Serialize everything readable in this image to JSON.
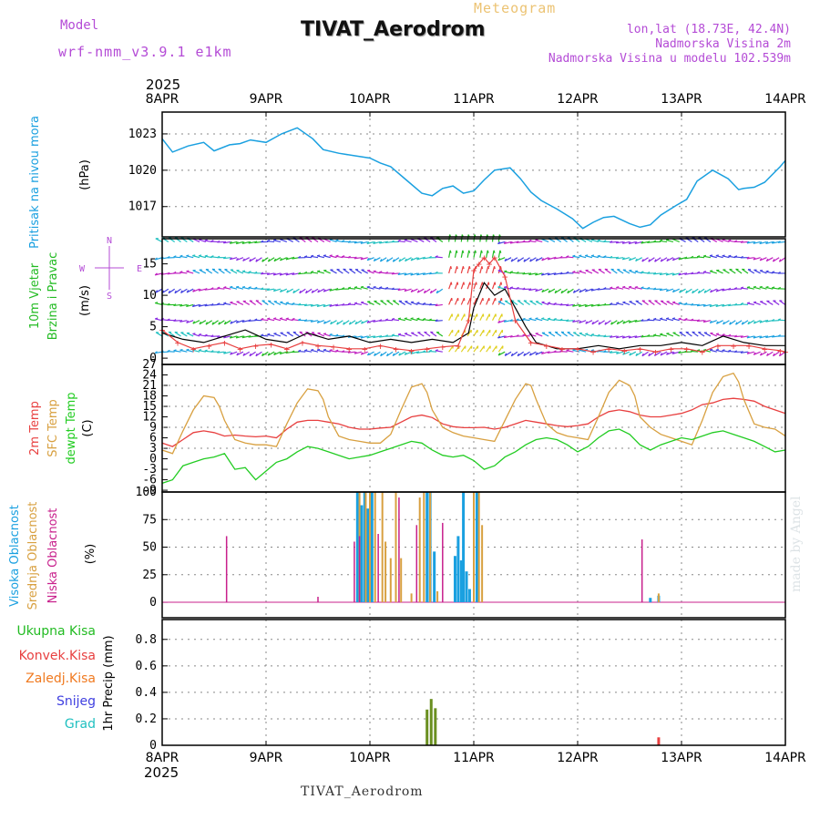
{
  "header": {
    "model_label": "Model",
    "model_value": "wrf-nmm_v3.9.1  e1km",
    "meteogram_label": "Meteogram",
    "station": "TIVAT_Aerodrom",
    "lonlat": "lon,lat (18.73E, 42.4N)",
    "elevation": "Nadmorska Visina 2m",
    "model_elevation": "Nadmorska Visina u modelu 102.539m"
  },
  "footer": {
    "station": "TIVAT_Aerodrom",
    "watermark": "made by Angel"
  },
  "colors": {
    "pressure": "#1aa0e0",
    "wind_label": "#22bb22",
    "purple": "#b44bd6",
    "temp2m": "#e84040",
    "sfc": "#d8a040",
    "dew": "#22cc22",
    "cloud_high": "#1aa0e0",
    "cloud_mid": "#d8a040",
    "cloud_low": "#c8208c",
    "precip_total": "#22bb22",
    "precip_conv": "#e84040",
    "precip_frozen": "#f07a20",
    "precip_snow": "#4040e0",
    "precip_hail": "#20c0c0",
    "gust": "#000000"
  },
  "chart_data": [
    {
      "type": "line",
      "panel": "pressure",
      "ylabel": [
        "Pritisak na nivou mora",
        "(hPa)"
      ],
      "y_ticks": [
        1017,
        1020,
        1023
      ],
      "ylim": [
        1014.5,
        1024.8
      ],
      "x_start_label": "2025",
      "x_ticks": [
        "8APR",
        "9APR",
        "10APR",
        "11APR",
        "12APR",
        "13APR",
        "14APR"
      ],
      "grid": true,
      "series": [
        {
          "x_days": [
            0,
            0.1,
            0.25,
            0.4,
            0.5,
            0.65,
            0.75,
            0.85,
            1.0,
            1.15,
            1.3,
            1.45,
            1.55,
            1.7,
            1.85,
            2.0,
            2.1,
            2.2,
            2.35,
            2.5,
            2.6,
            2.7,
            2.8,
            2.9,
            3.0,
            3.1,
            3.2,
            3.35,
            3.45,
            3.55,
            3.65,
            3.8,
            3.95,
            4.05,
            4.15,
            4.25,
            4.35,
            4.5,
            4.6,
            4.7,
            4.8,
            4.95,
            5.05,
            5.15,
            5.3,
            5.45,
            5.55,
            5.6,
            5.7,
            5.8,
            5.95,
            6.0
          ],
          "values": [
            1022.6,
            1021.5,
            1022.0,
            1022.3,
            1021.6,
            1022.1,
            1022.2,
            1022.5,
            1022.3,
            1023.0,
            1023.5,
            1022.6,
            1021.7,
            1021.4,
            1021.2,
            1021.0,
            1020.6,
            1020.3,
            1019.2,
            1018.1,
            1017.9,
            1018.5,
            1018.7,
            1018.1,
            1018.3,
            1019.2,
            1020.0,
            1020.2,
            1019.3,
            1018.2,
            1017.5,
            1016.8,
            1016.0,
            1015.2,
            1015.7,
            1016.1,
            1016.2,
            1015.6,
            1015.3,
            1015.5,
            1016.3,
            1017.1,
            1017.6,
            1019.1,
            1020.0,
            1019.3,
            1018.4,
            1018.5,
            1018.6,
            1019.0,
            1020.3,
            1020.8
          ]
        }
      ]
    },
    {
      "type": "scatter",
      "panel": "wind",
      "ylabel": [
        "10m Vjetar",
        "Brzina i Pravac",
        "(m/s)"
      ],
      "compass": [
        "N",
        "W",
        "E",
        "S"
      ],
      "y_ticks": [
        0,
        5,
        10,
        15
      ],
      "ylim": [
        -1,
        19
      ],
      "series": [
        {
          "name": "brzina",
          "x_days": [
            0,
            0.15,
            0.3,
            0.45,
            0.6,
            0.75,
            0.9,
            1.05,
            1.2,
            1.35,
            1.5,
            1.65,
            1.8,
            1.95,
            2.1,
            2.25,
            2.4,
            2.55,
            2.7,
            2.85,
            2.95,
            3.0,
            3.05,
            3.1,
            3.15,
            3.2,
            3.3,
            3.4,
            3.55,
            3.7,
            3.85,
            4.0,
            4.15,
            4.3,
            4.45,
            4.6,
            4.75,
            4.9,
            5.05,
            5.2,
            5.35,
            5.5,
            5.65,
            5.8,
            5.95,
            6.0
          ],
          "values": [
            4.5,
            2.5,
            1.5,
            2.0,
            2.5,
            1.5,
            2.0,
            2.2,
            1.5,
            2.5,
            2.0,
            1.8,
            1.5,
            1.5,
            2.0,
            1.5,
            1.2,
            1.5,
            1.8,
            2.0,
            6.0,
            14.0,
            15.0,
            16.0,
            15.0,
            16.0,
            13.0,
            6.0,
            2.5,
            2.0,
            1.5,
            1.5,
            1.0,
            1.5,
            1.2,
            1.5,
            1.0,
            1.5,
            1.5,
            1.0,
            2.0,
            2.0,
            2.0,
            1.5,
            1.2,
            1.0
          ]
        },
        {
          "name": "udari",
          "x_days": [
            0,
            0.2,
            0.4,
            0.6,
            0.8,
            1.0,
            1.2,
            1.4,
            1.6,
            1.8,
            2.0,
            2.2,
            2.4,
            2.6,
            2.8,
            2.95,
            3.0,
            3.1,
            3.2,
            3.3,
            3.4,
            3.5,
            3.6,
            3.8,
            4.0,
            4.2,
            4.4,
            4.6,
            4.8,
            5.0,
            5.2,
            5.4,
            5.6,
            5.8,
            6.0
          ],
          "values": [
            4.0,
            3.0,
            2.5,
            3.5,
            4.5,
            3.0,
            2.5,
            4.0,
            3.0,
            3.5,
            2.5,
            3.0,
            2.5,
            3.0,
            2.5,
            4.0,
            8.0,
            12.0,
            10.0,
            11.0,
            8.0,
            5.0,
            2.5,
            1.5,
            1.5,
            2.0,
            1.5,
            2.0,
            2.0,
            2.5,
            2.0,
            3.5,
            2.5,
            2.0,
            2.0
          ]
        }
      ]
    },
    {
      "type": "line",
      "panel": "temperature",
      "ylabel": [
        "2m Temp",
        "SFC Temp",
        "dewpt Temp",
        "(C)"
      ],
      "y_ticks": [
        -9,
        -6,
        -3,
        0,
        3,
        6,
        9,
        12,
        15,
        18,
        21,
        24,
        27
      ],
      "ylim": [
        -9.5,
        27
      ],
      "series": [
        {
          "name": "2m Temp",
          "x_days": [
            0,
            0.1,
            0.2,
            0.3,
            0.4,
            0.5,
            0.6,
            0.7,
            0.8,
            0.9,
            1.0,
            1.1,
            1.2,
            1.3,
            1.4,
            1.5,
            1.6,
            1.7,
            1.8,
            1.9,
            2.0,
            2.1,
            2.2,
            2.3,
            2.4,
            2.5,
            2.6,
            2.7,
            2.8,
            2.9,
            3.0,
            3.1,
            3.2,
            3.3,
            3.4,
            3.5,
            3.6,
            3.7,
            3.8,
            3.9,
            4.0,
            4.1,
            4.2,
            4.3,
            4.4,
            4.5,
            4.6,
            4.7,
            4.8,
            4.9,
            5.0,
            5.1,
            5.2,
            5.3,
            5.4,
            5.5,
            5.6,
            5.7,
            5.8,
            5.9,
            6.0
          ],
          "values": [
            4.5,
            3.5,
            5.5,
            7.5,
            8.0,
            7.5,
            6.5,
            6.8,
            6.5,
            6.3,
            6.5,
            6.0,
            8.5,
            10.5,
            11.0,
            11.0,
            10.5,
            10.0,
            9.0,
            8.5,
            8.5,
            8.8,
            9.0,
            10.5,
            12.0,
            12.5,
            11.8,
            10.0,
            9.2,
            8.9,
            8.9,
            9.0,
            8.5,
            9.0,
            10.0,
            11.0,
            10.5,
            10.0,
            9.5,
            9.2,
            9.5,
            10.0,
            12.0,
            13.5,
            14.0,
            13.5,
            12.5,
            12.0,
            12.0,
            12.5,
            13.0,
            14.0,
            15.5,
            16.0,
            17.0,
            17.3,
            17.0,
            16.5,
            15.0,
            14.0,
            13.0
          ]
        },
        {
          "name": "SFC Temp",
          "x_days": [
            0,
            0.1,
            0.2,
            0.3,
            0.4,
            0.5,
            0.55,
            0.6,
            0.7,
            0.8,
            0.9,
            1.0,
            1.1,
            1.2,
            1.3,
            1.4,
            1.5,
            1.55,
            1.6,
            1.7,
            1.8,
            1.9,
            2.0,
            2.1,
            2.2,
            2.3,
            2.4,
            2.5,
            2.55,
            2.6,
            2.7,
            2.8,
            2.9,
            3.0,
            3.1,
            3.2,
            3.3,
            3.4,
            3.5,
            3.55,
            3.6,
            3.7,
            3.8,
            3.9,
            4.0,
            4.1,
            4.2,
            4.3,
            4.4,
            4.5,
            4.55,
            4.6,
            4.7,
            4.8,
            4.9,
            5.0,
            5.1,
            5.2,
            5.3,
            5.4,
            5.5,
            5.55,
            5.6,
            5.7,
            5.8,
            5.9,
            6.0
          ],
          "values": [
            2.5,
            1.5,
            8.0,
            14.0,
            18.0,
            17.5,
            15.0,
            11.0,
            5.5,
            4.5,
            4.0,
            4.0,
            3.5,
            10.0,
            16.0,
            20.0,
            19.5,
            17.0,
            12.0,
            6.5,
            5.5,
            5.0,
            4.5,
            4.5,
            7.0,
            14.0,
            20.5,
            21.5,
            19.0,
            14.0,
            9.0,
            7.5,
            6.5,
            6.0,
            5.5,
            5.0,
            11.0,
            17.0,
            21.5,
            21.0,
            17.0,
            10.0,
            7.5,
            6.5,
            6.0,
            5.5,
            12.0,
            19.0,
            22.5,
            21.0,
            18.0,
            12.0,
            9.0,
            7.0,
            6.0,
            5.0,
            4.0,
            11.0,
            19.0,
            23.5,
            24.5,
            22.0,
            17.0,
            10.0,
            9.0,
            8.5,
            6.5
          ]
        },
        {
          "name": "dewpt Temp",
          "x_days": [
            0,
            0.1,
            0.2,
            0.3,
            0.4,
            0.5,
            0.6,
            0.7,
            0.8,
            0.9,
            1.0,
            1.1,
            1.2,
            1.3,
            1.4,
            1.5,
            1.6,
            1.7,
            1.8,
            1.9,
            2.0,
            2.1,
            2.2,
            2.3,
            2.4,
            2.5,
            2.6,
            2.7,
            2.8,
            2.9,
            3.0,
            3.1,
            3.2,
            3.3,
            3.4,
            3.5,
            3.6,
            3.7,
            3.8,
            3.9,
            4.0,
            4.1,
            4.2,
            4.3,
            4.4,
            4.5,
            4.6,
            4.7,
            4.8,
            4.9,
            5.0,
            5.1,
            5.2,
            5.3,
            5.4,
            5.5,
            5.6,
            5.7,
            5.8,
            5.9,
            6.0
          ],
          "values": [
            -7.0,
            -6.0,
            -2.0,
            -1.0,
            0.0,
            0.5,
            1.5,
            -3.0,
            -2.5,
            -6.0,
            -3.5,
            -1.0,
            0.0,
            2.0,
            3.5,
            3.0,
            2.0,
            1.0,
            0.0,
            0.5,
            1.0,
            2.0,
            3.0,
            4.0,
            5.0,
            4.5,
            2.5,
            1.0,
            0.5,
            1.0,
            -0.5,
            -3.0,
            -2.0,
            0.5,
            2.0,
            4.0,
            5.5,
            6.0,
            5.5,
            4.0,
            2.0,
            3.5,
            6.0,
            8.0,
            8.5,
            7.0,
            4.0,
            2.5,
            4.0,
            5.0,
            6.0,
            5.5,
            6.5,
            7.5,
            8.0,
            7.0,
            6.0,
            5.0,
            3.5,
            2.0,
            2.5
          ]
        }
      ]
    },
    {
      "type": "bar",
      "panel": "cloud",
      "ylabel": [
        "Visoka Oblacnost",
        "Srednja Oblacnost",
        "Niska Oblacnost",
        "(%)"
      ],
      "y_ticks": [
        0,
        25,
        50,
        75,
        100
      ],
      "ylim": [
        0,
        100
      ],
      "series": [
        {
          "name": "Visoka Oblacnost",
          "x_days": [
            1.88,
            1.92,
            1.95,
            1.98,
            2.02,
            2.55,
            2.58,
            2.62,
            2.82,
            2.85,
            2.88,
            2.9,
            2.93,
            2.96,
            3.03,
            4.7,
            4.78
          ],
          "values": [
            100,
            88,
            100,
            85,
            100,
            100,
            100,
            46,
            42,
            60,
            38,
            100,
            28,
            12,
            100,
            4,
            6
          ]
        },
        {
          "name": "Srednja Oblacnost",
          "x_days": [
            1.9,
            1.96,
            2.0,
            2.05,
            2.12,
            2.15,
            2.2,
            2.25,
            2.3,
            2.4,
            2.48,
            2.52,
            2.58,
            2.65,
            3.0,
            3.05,
            3.08,
            4.78
          ],
          "values": [
            100,
            100,
            100,
            100,
            100,
            55,
            40,
            100,
            40,
            8,
            95,
            100,
            100,
            10,
            100,
            100,
            70,
            8
          ]
        },
        {
          "name": "Niska Oblacnost",
          "x_days": [
            0.62,
            1.5,
            1.85,
            1.9,
            2.08,
            2.28,
            2.45,
            2.7,
            4.62
          ],
          "values": [
            60,
            5,
            55,
            60,
            62,
            95,
            70,
            72,
            57
          ]
        }
      ]
    },
    {
      "type": "bar",
      "panel": "precip",
      "ylabel": [
        "1hr Precip (mm)"
      ],
      "legend": [
        "Ukupna Kisa",
        "Konvek.Kisa",
        "Zaledj.Kisa",
        "Snijeg",
        "Grad"
      ],
      "y_ticks": [
        0,
        0.2,
        0.4,
        0.6,
        0.8
      ],
      "ylim": [
        0,
        0.95
      ],
      "x_ticks": [
        "8APR",
        "9APR",
        "10APR",
        "11APR",
        "12APR",
        "13APR",
        "14APR"
      ],
      "x_end_label": "2025",
      "series": [
        {
          "name": "Ukupna Kisa",
          "x_days": [
            2.55,
            2.59,
            2.63
          ],
          "values": [
            0.27,
            0.35,
            0.28
          ]
        },
        {
          "name": "Konvek.Kisa",
          "x_days": [
            4.78
          ],
          "values": [
            0.06
          ]
        },
        {
          "name": "Zaledj.Kisa",
          "x_days": [],
          "values": []
        },
        {
          "name": "Snijeg",
          "x_days": [],
          "values": []
        },
        {
          "name": "Grad",
          "x_days": [],
          "values": []
        }
      ]
    }
  ]
}
